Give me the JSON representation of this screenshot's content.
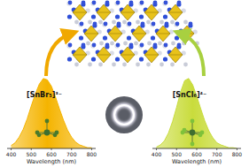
{
  "chart_data": [
    {
      "type": "area",
      "annotation": "[SnBr₅]³⁻",
      "xlabel": "Wavelength (nm)",
      "color": "#f5b400",
      "x": [
        400,
        420,
        440,
        460,
        480,
        500,
        520,
        540,
        560,
        580,
        600,
        620,
        640,
        660,
        680,
        700,
        720,
        740,
        760,
        780,
        800
      ],
      "values": [
        4,
        8,
        16,
        27,
        42,
        60,
        77,
        91,
        99,
        97,
        88,
        73,
        56,
        40,
        26,
        16,
        9,
        5,
        3,
        1,
        1
      ],
      "xlim": [
        380,
        820
      ],
      "ylim": [
        0,
        100
      ],
      "xticks": [
        400,
        500,
        600,
        700,
        800
      ],
      "tick_labels": "x"
    },
    {
      "type": "area",
      "annotation": "[SnCl₆]⁴⁻",
      "xlabel": "Wavelength (nm)",
      "color": "#c9dc3c",
      "x": [
        400,
        420,
        440,
        460,
        480,
        500,
        520,
        540,
        560,
        580,
        600,
        620,
        640,
        660,
        680,
        700,
        720,
        740,
        760,
        780,
        800
      ],
      "values": [
        2,
        5,
        11,
        22,
        38,
        58,
        80,
        96,
        99,
        90,
        74,
        56,
        39,
        25,
        15,
        8,
        5,
        3,
        1,
        1,
        0
      ],
      "xlim": [
        380,
        820
      ],
      "ylim": [
        0,
        100
      ],
      "xticks": [
        400,
        500,
        600,
        700,
        800
      ],
      "tick_labels": "x"
    }
  ]
}
